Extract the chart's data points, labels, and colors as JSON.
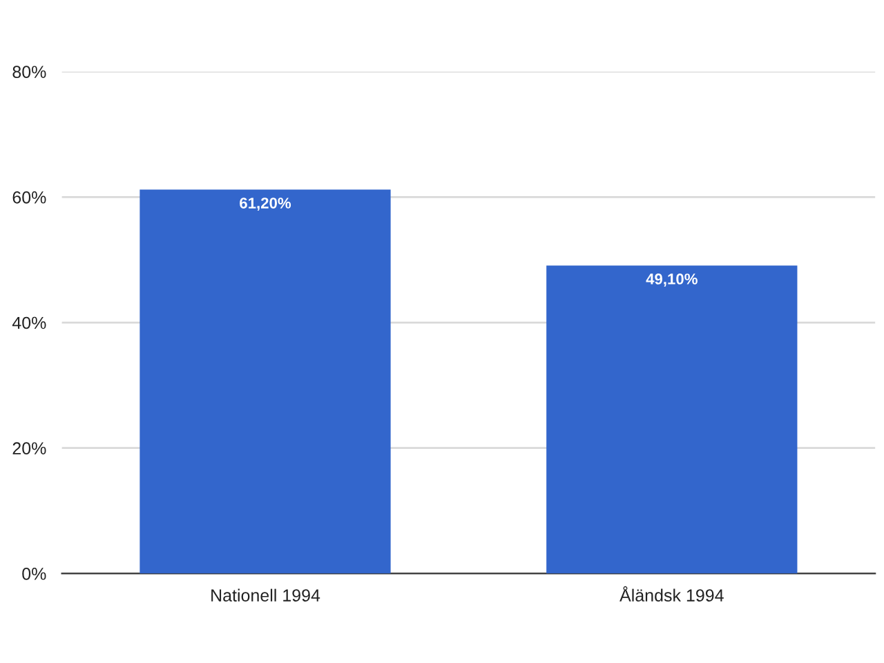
{
  "chart_data": {
    "type": "bar",
    "categories": [
      "Nationell 1994",
      "Åländsk 1994"
    ],
    "values": [
      61.2,
      49.1
    ],
    "color": "#3366cc",
    "value_labels": [
      "61,20%",
      "49,10%"
    ],
    "ylim": [
      0,
      80
    ],
    "yticks": [
      {
        "value": 0,
        "label": "0%"
      },
      {
        "value": 20,
        "label": "20%"
      },
      {
        "value": 40,
        "label": "40%"
      },
      {
        "value": 60,
        "label": "60%"
      },
      {
        "value": 80,
        "label": "80%"
      }
    ],
    "grid": "y"
  }
}
